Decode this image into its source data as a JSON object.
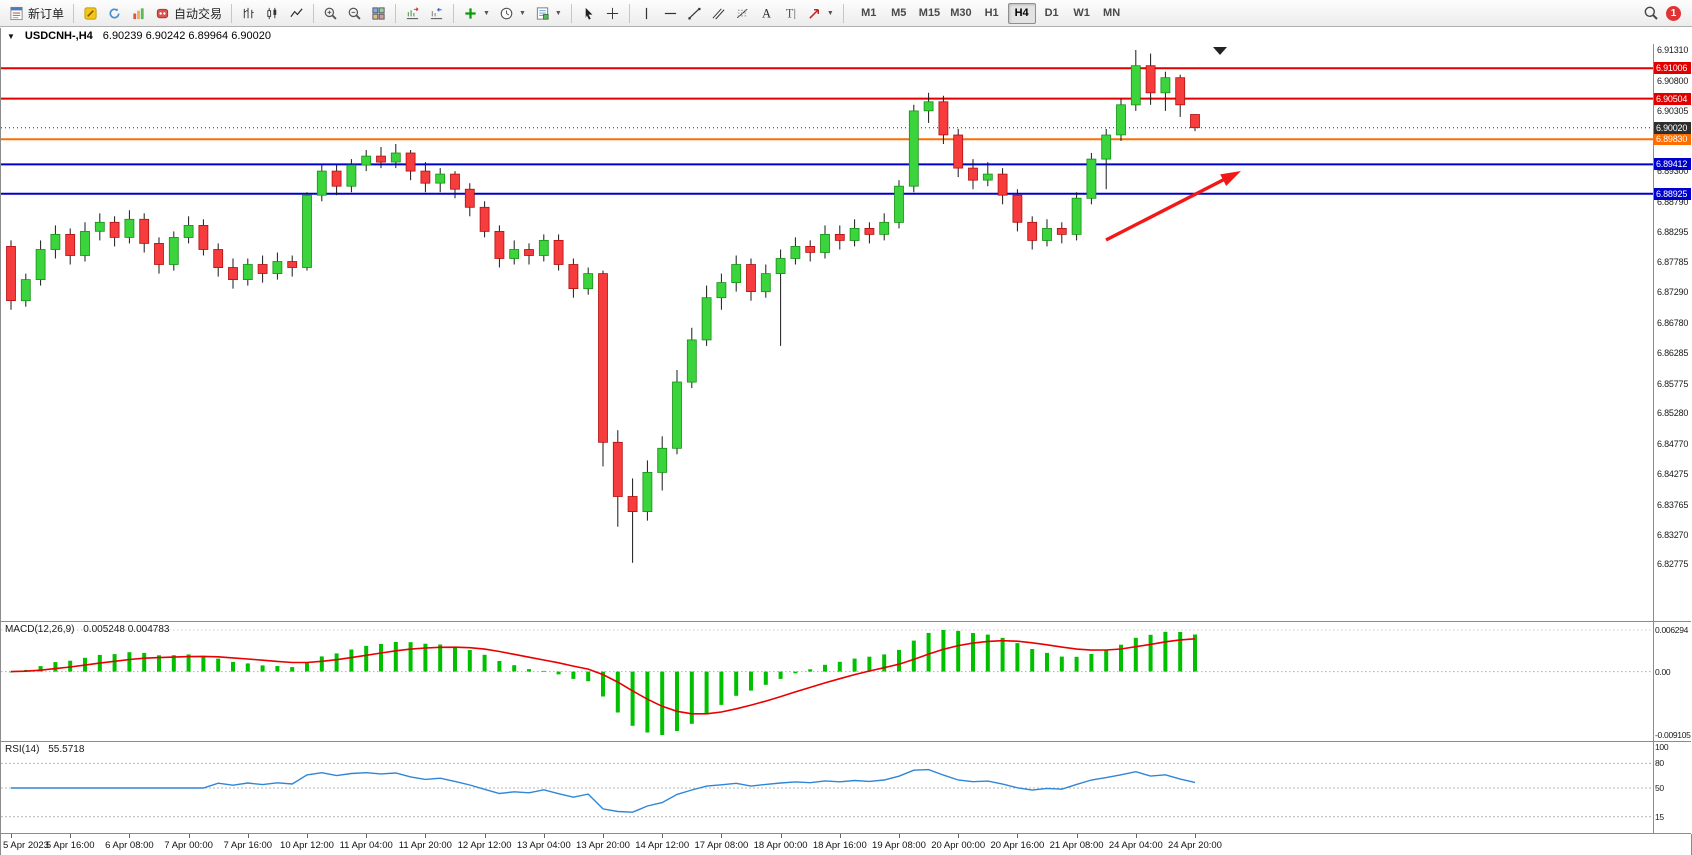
{
  "toolbar": {
    "new_order_label": "新订单",
    "autotrading_label": "自动交易",
    "notification_count": "1",
    "timeframes": [
      "M1",
      "M5",
      "M15",
      "M30",
      "H1",
      "H4",
      "D1",
      "W1",
      "MN"
    ],
    "active_timeframe": "H4",
    "icon_buttons": [
      "new-order",
      "metaeditor",
      "terminal",
      "strategy-tester",
      "autotrading",
      "bar-chart",
      "candlestick-chart",
      "line-chart",
      "zoom-in",
      "zoom-out",
      "tile-windows",
      "auto-scroll",
      "chart-shift",
      "add-indicator",
      "periods-clock",
      "template",
      "cursor",
      "crosshair",
      "vertical-line",
      "horizontal-line",
      "trendline",
      "channel",
      "fibonacci",
      "text",
      "text-label",
      "shapes",
      "search",
      "notification"
    ]
  },
  "header": {
    "symbol": "USDCNH-,H4",
    "ohlc": "6.90239 6.90242 6.89964 6.90020"
  },
  "chart_data": {
    "type": "candlestick",
    "symbol": "USDCNH-",
    "timeframe": "H4",
    "grid": false,
    "up_color": "#3cd43c",
    "down_color": "#f63c3c",
    "candles": [
      [
        6.8805,
        6.8815,
        6.87,
        6.8715
      ],
      [
        6.8715,
        6.876,
        6.8705,
        6.875
      ],
      [
        6.875,
        6.8815,
        6.874,
        6.88
      ],
      [
        6.88,
        6.884,
        6.8785,
        6.8825
      ],
      [
        6.8825,
        6.8835,
        6.8775,
        6.879
      ],
      [
        6.879,
        6.8845,
        6.878,
        6.883
      ],
      [
        6.883,
        6.886,
        6.8815,
        6.8845
      ],
      [
        6.8845,
        6.8855,
        6.8805,
        6.882
      ],
      [
        6.882,
        6.8865,
        6.881,
        6.885
      ],
      [
        6.885,
        6.886,
        6.8795,
        6.881
      ],
      [
        6.881,
        6.882,
        6.876,
        6.8775
      ],
      [
        6.8775,
        6.883,
        6.8765,
        6.882
      ],
      [
        6.882,
        6.8855,
        6.881,
        6.884
      ],
      [
        6.884,
        6.885,
        6.879,
        6.88
      ],
      [
        6.88,
        6.881,
        6.8755,
        6.877
      ],
      [
        6.877,
        6.8785,
        6.8735,
        6.875
      ],
      [
        6.875,
        6.8785,
        6.874,
        6.8775
      ],
      [
        6.8775,
        6.879,
        6.8745,
        6.876
      ],
      [
        6.876,
        6.8795,
        6.875,
        6.878
      ],
      [
        6.878,
        6.879,
        6.8755,
        6.877
      ],
      [
        6.877,
        6.8895,
        6.8765,
        6.889
      ],
      [
        6.889,
        6.894,
        6.888,
        6.893
      ],
      [
        6.893,
        6.894,
        6.889,
        6.8905
      ],
      [
        6.8905,
        6.895,
        6.8895,
        6.894
      ],
      [
        6.894,
        6.8965,
        6.893,
        6.8955
      ],
      [
        6.8955,
        6.897,
        6.8935,
        6.8945
      ],
      [
        6.8945,
        6.8975,
        6.8935,
        6.896
      ],
      [
        6.896,
        6.8965,
        6.8915,
        6.893
      ],
      [
        6.893,
        6.8945,
        6.8895,
        6.891
      ],
      [
        6.891,
        6.8935,
        6.8895,
        6.8925
      ],
      [
        6.8925,
        6.893,
        6.8885,
        6.89
      ],
      [
        6.89,
        6.891,
        6.8855,
        6.887
      ],
      [
        6.887,
        6.888,
        6.882,
        6.883
      ],
      [
        6.883,
        6.884,
        6.877,
        6.8785
      ],
      [
        6.8785,
        6.8815,
        6.8775,
        6.88
      ],
      [
        6.88,
        6.881,
        6.8775,
        6.879
      ],
      [
        6.879,
        6.8825,
        6.878,
        6.8815
      ],
      [
        6.8815,
        6.8825,
        6.8765,
        6.8775
      ],
      [
        6.8775,
        6.8785,
        6.872,
        6.8735
      ],
      [
        6.8735,
        6.877,
        6.8725,
        6.876
      ],
      [
        6.876,
        6.8765,
        6.844,
        6.848
      ],
      [
        6.848,
        6.85,
        6.834,
        6.839
      ],
      [
        6.839,
        6.842,
        6.828,
        6.8365
      ],
      [
        6.8365,
        6.845,
        6.835,
        6.843
      ],
      [
        6.843,
        6.849,
        6.84,
        6.847
      ],
      [
        6.847,
        6.86,
        6.846,
        6.858
      ],
      [
        6.858,
        6.867,
        6.857,
        6.865
      ],
      [
        6.865,
        6.874,
        6.864,
        6.872
      ],
      [
        6.872,
        6.876,
        6.87,
        6.8745
      ],
      [
        6.8745,
        6.879,
        6.873,
        6.8775
      ],
      [
        6.8775,
        6.8785,
        6.8715,
        6.873
      ],
      [
        6.873,
        6.8775,
        6.872,
        6.876
      ],
      [
        6.876,
        6.88,
        6.864,
        6.8785
      ],
      [
        6.8785,
        6.882,
        6.8775,
        6.8805
      ],
      [
        6.8805,
        6.8815,
        6.878,
        6.8795
      ],
      [
        6.8795,
        6.884,
        6.8785,
        6.8825
      ],
      [
        6.8825,
        6.884,
        6.88,
        6.8815
      ],
      [
        6.8815,
        6.885,
        6.8805,
        6.8835
      ],
      [
        6.8835,
        6.8845,
        6.881,
        6.8825
      ],
      [
        6.8825,
        6.886,
        6.8815,
        6.8845
      ],
      [
        6.8845,
        6.8915,
        6.8835,
        6.8905
      ],
      [
        6.8905,
        6.904,
        6.8895,
        6.903
      ],
      [
        6.903,
        6.906,
        6.901,
        6.9045
      ],
      [
        6.9045,
        6.9055,
        6.8975,
        6.899
      ],
      [
        6.899,
        6.9,
        6.892,
        6.8935
      ],
      [
        6.8935,
        6.895,
        6.89,
        6.8915
      ],
      [
        6.8915,
        6.8945,
        6.8905,
        6.8925
      ],
      [
        6.8925,
        6.8935,
        6.8875,
        6.889
      ],
      [
        6.889,
        6.89,
        6.883,
        6.8845
      ],
      [
        6.8845,
        6.8855,
        6.88,
        6.8815
      ],
      [
        6.8815,
        6.885,
        6.8805,
        6.8835
      ],
      [
        6.8835,
        6.8845,
        6.881,
        6.8825
      ],
      [
        6.8825,
        6.8895,
        6.8815,
        6.8885
      ],
      [
        6.8885,
        6.896,
        6.8875,
        6.895
      ],
      [
        6.895,
        6.9,
        6.89,
        6.899
      ],
      [
        6.899,
        6.905,
        6.898,
        6.904
      ],
      [
        6.904,
        6.9131,
        6.903,
        6.9105
      ],
      [
        6.9105,
        6.9125,
        6.904,
        6.906
      ],
      [
        6.906,
        6.9095,
        6.903,
        6.9085
      ],
      [
        6.9085,
        6.909,
        6.902,
        6.904
      ],
      [
        6.90239,
        6.90242,
        6.89964,
        6.9002
      ]
    ],
    "time_labels": [
      "5 Apr 2023",
      "5 Apr 16:00",
      "6 Apr 08:00",
      "7 Apr 00:00",
      "7 Apr 16:00",
      "10 Apr 12:00",
      "11 Apr 04:00",
      "11 Apr 20:00",
      "12 Apr 12:00",
      "13 Apr 04:00",
      "13 Apr 20:00",
      "14 Apr 12:00",
      "17 Apr 08:00",
      "18 Apr 00:00",
      "18 Apr 16:00",
      "19 Apr 08:00",
      "20 Apr 00:00",
      "20 Apr 16:00",
      "21 Apr 08:00",
      "24 Apr 04:00",
      "24 Apr 20:00"
    ],
    "label_every_n_bars": 4,
    "price_axis_labels": [
      "6.91310",
      "6.90800",
      "6.90305",
      "6.89795",
      "6.89300",
      "6.88790",
      "6.88295",
      "6.87785",
      "6.87290",
      "6.86780",
      "6.86285",
      "6.85775",
      "6.85280",
      "6.84770",
      "6.84275",
      "6.83765",
      "6.83270",
      "6.82775"
    ],
    "levels": [
      {
        "price": 6.91006,
        "label": "6.91006",
        "color": "#e00000",
        "style": "solid"
      },
      {
        "price": 6.90504,
        "label": "6.90504",
        "color": "#e00000",
        "style": "solid"
      },
      {
        "price": 6.8983,
        "label": "6.89830",
        "color": "#ff6d00",
        "style": "solid"
      },
      {
        "price": 6.89412,
        "label": "6.89412",
        "color": "#0000cc",
        "style": "solid"
      },
      {
        "price": 6.88925,
        "label": "6.88925",
        "color": "#0000cc",
        "style": "solid"
      },
      {
        "price": 6.9002,
        "label": "6.90020",
        "color": "#2e2e2e",
        "style": "dotted"
      }
    ],
    "annotations": [
      {
        "type": "arrow",
        "color": "#f21818",
        "direction": "up-right"
      }
    ],
    "indicators": {
      "macd": {
        "label": "MACD(12,26,9)",
        "values_text": "0.005248 0.004783",
        "params": [
          12,
          26,
          9
        ],
        "histogram_color": "#00c000",
        "signal_color": "#e80000",
        "axis_labels": [
          "0.006294",
          "0.00",
          "-0.009105"
        ],
        "axis_values": [
          0.006294,
          0,
          -0.009105
        ]
      },
      "rsi": {
        "label": "RSI(14)",
        "value_text": "55.5718",
        "period": 14,
        "line_color": "#2e86d8",
        "axis_labels": [
          "100",
          "80",
          "50",
          "15"
        ],
        "axis_values": [
          100,
          80,
          50,
          15
        ],
        "level_lines": [
          80,
          50,
          15
        ]
      }
    }
  }
}
